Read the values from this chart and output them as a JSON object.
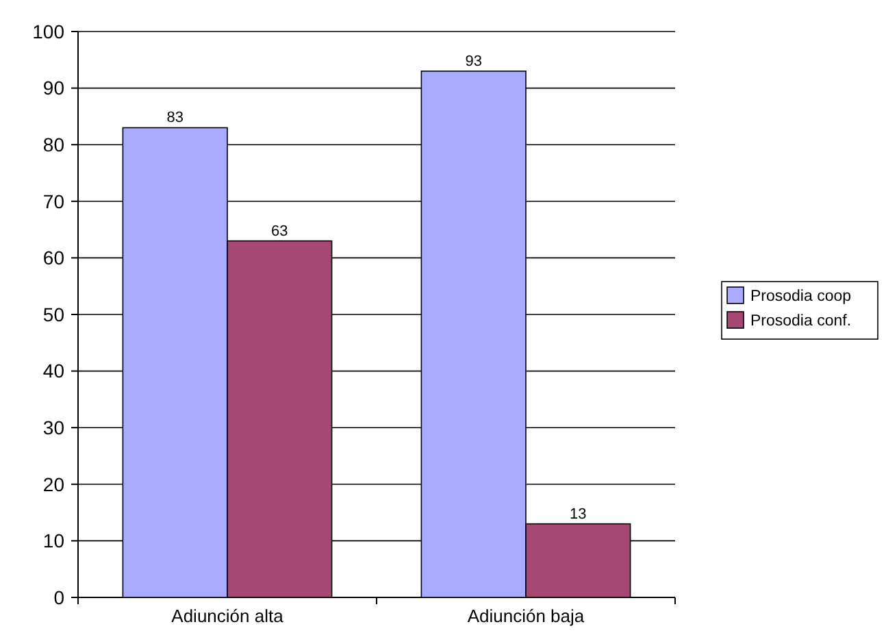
{
  "chart_data": {
    "type": "bar",
    "categories": [
      "Adiunción alta",
      "Adiunción baja"
    ],
    "series": [
      {
        "name": "Prosodia coop",
        "color": "#aaaaff",
        "values": [
          83,
          93
        ]
      },
      {
        "name": "Prosodia conf.",
        "color": "#a64873",
        "values": [
          63,
          13
        ]
      }
    ],
    "ylim": [
      0,
      100
    ],
    "yticks": [
      0,
      10,
      20,
      30,
      40,
      50,
      60,
      70,
      80,
      90,
      100
    ],
    "grid": "y",
    "legend": "right",
    "data_labels": true
  }
}
